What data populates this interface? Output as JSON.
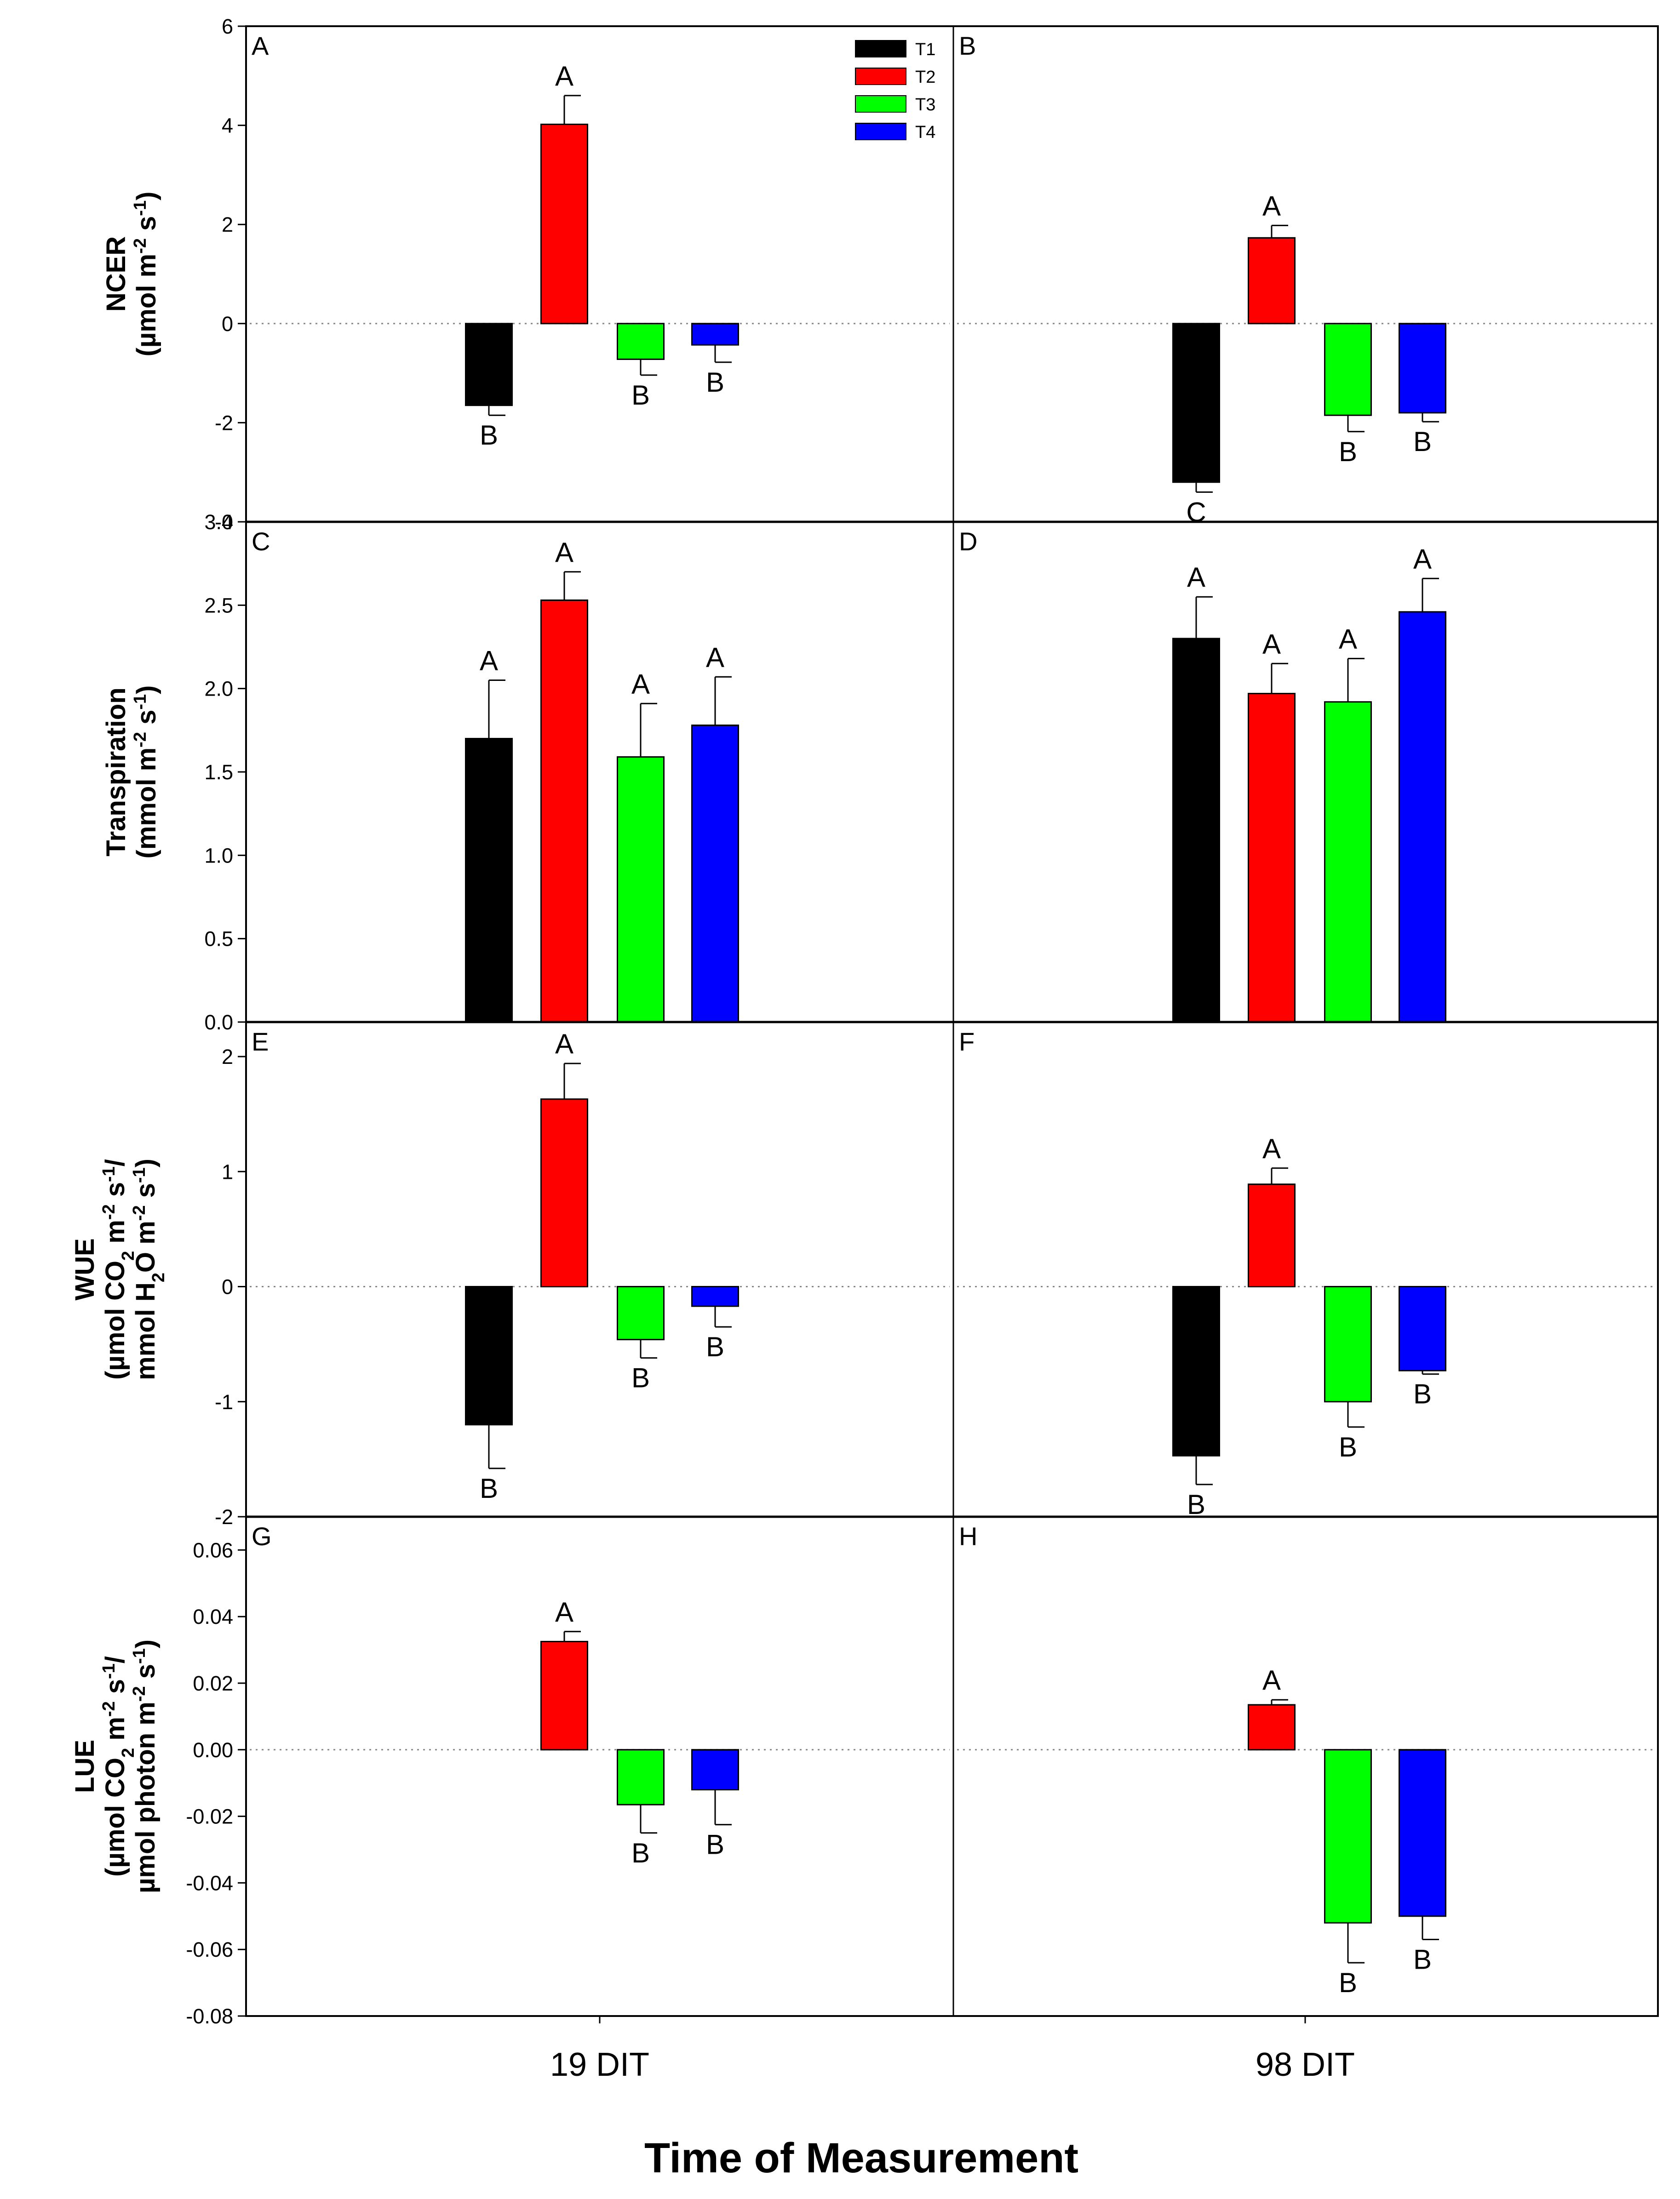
{
  "figure": {
    "xlabel": "Time of Measurement"
  },
  "chart_data": {
    "type": "bar",
    "title": "",
    "xlabel": "Time of Measurement",
    "categories": [
      "19 DIT",
      "98 DIT"
    ],
    "legend": {
      "placement": "top-right of panel A",
      "entries": [
        "T1",
        "T2",
        "T3",
        "T4"
      ]
    },
    "series_colors": {
      "T1": "#000000",
      "T2": "#ff0000",
      "T3": "#00ff00",
      "T4": "#0000ff"
    },
    "reference_line": 0,
    "rows": [
      {
        "name": "NCER",
        "ylabel_lines": [
          {
            "runs": [
              {
                "t": "NCER"
              }
            ]
          },
          {
            "runs": [
              {
                "t": "(µmol m"
              },
              {
                "t": "-2",
                "sup": true
              },
              {
                "t": " s"
              },
              {
                "t": "-1",
                "sup": true
              },
              {
                "t": ")"
              }
            ]
          }
        ],
        "ylim": [
          -4,
          6
        ],
        "yticks": [
          -4,
          -2,
          0,
          2,
          4,
          6
        ],
        "tick_labels": [
          "-4",
          "-2",
          "0",
          "2",
          "4",
          "6"
        ],
        "panels": [
          {
            "letter": "A",
            "category": "19 DIT",
            "bars": [
              {
                "series": "T1",
                "value": -1.65,
                "err": 0.2,
                "label": "B"
              },
              {
                "series": "T2",
                "value": 4.02,
                "err": 0.58,
                "label": "A"
              },
              {
                "series": "T3",
                "value": -0.72,
                "err": 0.32,
                "label": "B"
              },
              {
                "series": "T4",
                "value": -0.43,
                "err": 0.35,
                "label": "B"
              }
            ]
          },
          {
            "letter": "B",
            "category": "98 DIT",
            "bars": [
              {
                "series": "T1",
                "value": -3.2,
                "err": 0.2,
                "label": "C"
              },
              {
                "series": "T2",
                "value": 1.73,
                "err": 0.25,
                "label": "A"
              },
              {
                "series": "T3",
                "value": -1.85,
                "err": 0.33,
                "label": "B"
              },
              {
                "series": "T4",
                "value": -1.8,
                "err": 0.18,
                "label": "B"
              }
            ]
          }
        ]
      },
      {
        "name": "Transpiration",
        "ylabel_lines": [
          {
            "runs": [
              {
                "t": "Transpiration"
              }
            ]
          },
          {
            "runs": [
              {
                "t": "(mmol m"
              },
              {
                "t": "-2",
                "sup": true
              },
              {
                "t": " s"
              },
              {
                "t": "-1",
                "sup": true
              },
              {
                "t": ")"
              }
            ]
          }
        ],
        "ylim": [
          0,
          3
        ],
        "yticks": [
          0,
          0.5,
          1,
          1.5,
          2,
          2.5,
          3
        ],
        "tick_labels": [
          "0.0",
          "0.5",
          "1.0",
          "1.5",
          "2.0",
          "2.5",
          "3.0"
        ],
        "panels": [
          {
            "letter": "C",
            "category": "19 DIT",
            "bars": [
              {
                "series": "T1",
                "value": 1.7,
                "err": 0.35,
                "label": "A"
              },
              {
                "series": "T2",
                "value": 2.53,
                "err": 0.17,
                "label": "A"
              },
              {
                "series": "T3",
                "value": 1.59,
                "err": 0.32,
                "label": "A"
              },
              {
                "series": "T4",
                "value": 1.78,
                "err": 0.29,
                "label": "A"
              }
            ]
          },
          {
            "letter": "D",
            "category": "98 DIT",
            "bars": [
              {
                "series": "T1",
                "value": 2.3,
                "err": 0.25,
                "label": "A"
              },
              {
                "series": "T2",
                "value": 1.97,
                "err": 0.18,
                "label": "A"
              },
              {
                "series": "T3",
                "value": 1.92,
                "err": 0.26,
                "label": "A"
              },
              {
                "series": "T4",
                "value": 2.46,
                "err": 0.2,
                "label": "A"
              }
            ]
          }
        ]
      },
      {
        "name": "WUE",
        "ylabel_lines": [
          {
            "runs": [
              {
                "t": "WUE"
              }
            ]
          },
          {
            "runs": [
              {
                "t": "(µmol CO"
              },
              {
                "t": "2",
                "sub": true
              },
              {
                "t": " m"
              },
              {
                "t": "-2",
                "sup": true
              },
              {
                "t": " s"
              },
              {
                "t": "-1",
                "sup": true
              },
              {
                "t": "/"
              }
            ]
          },
          {
            "runs": [
              {
                "t": "mmol H"
              },
              {
                "t": "2",
                "sub": true
              },
              {
                "t": "O m"
              },
              {
                "t": "-2",
                "sup": true
              },
              {
                "t": " s"
              },
              {
                "t": "-1",
                "sup": true
              },
              {
                "t": ")"
              }
            ]
          }
        ],
        "ylim": [
          -2,
          2.3
        ],
        "yticks": [
          -2,
          -1,
          0,
          1,
          2
        ],
        "tick_labels": [
          "-2",
          "-1",
          "0",
          "1",
          "2"
        ],
        "panels": [
          {
            "letter": "E",
            "category": "19 DIT",
            "bars": [
              {
                "series": "T1",
                "value": -1.2,
                "err": 0.38,
                "label": "B"
              },
              {
                "series": "T2",
                "value": 1.63,
                "err": 0.31,
                "label": "A"
              },
              {
                "series": "T3",
                "value": -0.46,
                "err": 0.16,
                "label": "B"
              },
              {
                "series": "T4",
                "value": -0.17,
                "err": 0.18,
                "label": "B"
              }
            ]
          },
          {
            "letter": "F",
            "category": "98 DIT",
            "bars": [
              {
                "series": "T1",
                "value": -1.47,
                "err": 0.25,
                "label": "B"
              },
              {
                "series": "T2",
                "value": 0.89,
                "err": 0.14,
                "label": "A"
              },
              {
                "series": "T3",
                "value": -1.0,
                "err": 0.22,
                "label": "B"
              },
              {
                "series": "T4",
                "value": -0.73,
                "err": 0.03,
                "label": "B"
              }
            ]
          }
        ]
      },
      {
        "name": "LUE",
        "ylabel_lines": [
          {
            "runs": [
              {
                "t": "LUE"
              }
            ]
          },
          {
            "runs": [
              {
                "t": "(µmol CO"
              },
              {
                "t": "2",
                "sub": true
              },
              {
                "t": " m"
              },
              {
                "t": "-2",
                "sup": true
              },
              {
                "t": " s"
              },
              {
                "t": "-1",
                "sup": true
              },
              {
                "t": "/"
              }
            ]
          },
          {
            "runs": [
              {
                "t": "µmol photon m"
              },
              {
                "t": "-2",
                "sup": true
              },
              {
                "t": " s"
              },
              {
                "t": "-1",
                "sup": true
              },
              {
                "t": ")"
              }
            ]
          }
        ],
        "ylim": [
          -0.08,
          0.07
        ],
        "yticks": [
          -0.08,
          -0.06,
          -0.04,
          -0.02,
          0,
          0.02,
          0.04,
          0.06
        ],
        "tick_labels": [
          "-0.08",
          "-0.06",
          "-0.04",
          "-0.02",
          "0.00",
          "0.02",
          "0.04",
          "0.06"
        ],
        "panels": [
          {
            "letter": "G",
            "category": "19 DIT",
            "bars": [
              {
                "series": "T1",
                "value": null,
                "err": null,
                "label": ""
              },
              {
                "series": "T2",
                "value": 0.0325,
                "err": 0.003,
                "label": "A"
              },
              {
                "series": "T3",
                "value": -0.0165,
                "err": 0.0085,
                "label": "B"
              },
              {
                "series": "T4",
                "value": -0.012,
                "err": 0.0105,
                "label": "B"
              }
            ]
          },
          {
            "letter": "H",
            "category": "98 DIT",
            "bars": [
              {
                "series": "T1",
                "value": null,
                "err": null,
                "label": ""
              },
              {
                "series": "T2",
                "value": 0.0135,
                "err": 0.0015,
                "label": "A"
              },
              {
                "series": "T3",
                "value": -0.052,
                "err": 0.012,
                "label": "B"
              },
              {
                "series": "T4",
                "value": -0.05,
                "err": 0.007,
                "label": "B"
              }
            ]
          }
        ]
      }
    ]
  }
}
